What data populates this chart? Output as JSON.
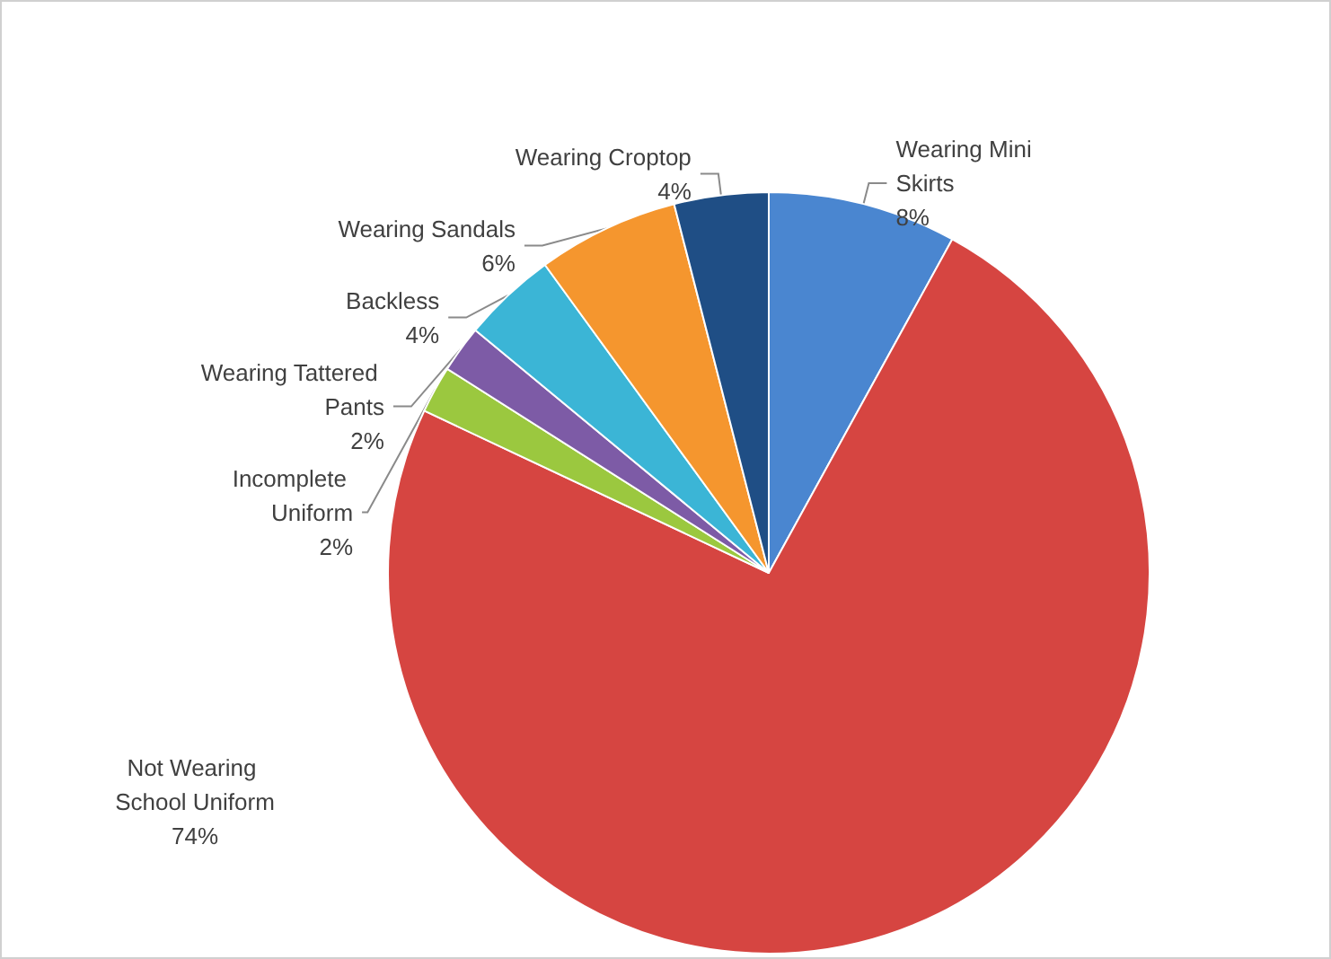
{
  "chart_data": {
    "type": "pie",
    "categories": [
      "Wearing Mini Skirts",
      "Not Wearing School Uniform",
      "Incomplete Uniform",
      "Wearing Tattered Pants",
      "Backless",
      "Wearing Sandals",
      "Wearing Croptop"
    ],
    "values": [
      8,
      74,
      2,
      2,
      4,
      6,
      4
    ],
    "value_labels": [
      "8%",
      "74%",
      "2%",
      "2%",
      "4%",
      "6%",
      "4%"
    ],
    "colors": [
      "#4a86d0",
      "#d64541",
      "#9bc83f",
      "#7d5ba6",
      "#3bb5d6",
      "#f5962e",
      "#1f4e85"
    ],
    "legend": false
  }
}
